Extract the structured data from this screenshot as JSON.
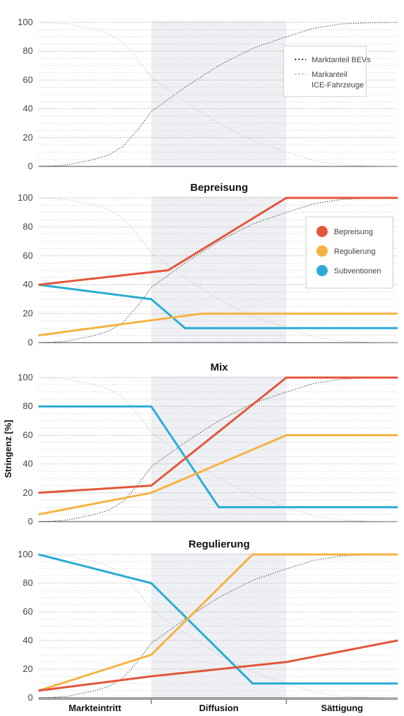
{
  "colors": {
    "bepreisung": "#e4553a",
    "regulierung": "#f5b342",
    "subventionen": "#29acd6",
    "bev": "#333333",
    "ice": "#bfbfbf",
    "phase_band": "#eef0f3",
    "grid": "#b0b0b0",
    "axis": "#444444"
  },
  "y_axis_label": "Stringenz [%]",
  "phases": [
    "Markteintritt",
    "Diffusion",
    "Sättigung"
  ],
  "chart_data": [
    {
      "type": "line",
      "title": "",
      "ylim": [
        0,
        100
      ],
      "yticks": [
        0,
        20,
        40,
        60,
        80,
        100
      ],
      "legend": {
        "position": "top-right",
        "entries": [
          "Marktanteil BEVs",
          "Markanteil ICE-Fahrzeuge"
        ]
      },
      "series": [
        {
          "name": "Marktanteil BEVs",
          "style": "dotted",
          "points": [
            [
              0,
              0
            ],
            [
              0.1,
              0.3
            ],
            [
              0.2,
              1
            ],
            [
              0.3,
              3
            ],
            [
              0.4,
              5
            ],
            [
              0.5,
              8
            ],
            [
              0.6,
              14
            ],
            [
              0.7,
              25
            ],
            [
              0.8,
              38
            ],
            [
              0.9,
              55
            ],
            [
              1.0,
              70
            ],
            [
              1.1,
              82
            ],
            [
              1.2,
              90
            ],
            [
              1.4,
              96
            ],
            [
              1.6,
              99
            ],
            [
              1.8,
              99.7
            ],
            [
              2.0,
              100
            ]
          ]
        },
        {
          "name": "Markanteil ICE-Fahrzeuge",
          "style": "dotted",
          "points": [
            [
              0,
              100
            ],
            [
              0.1,
              99.7
            ],
            [
              0.2,
              99
            ],
            [
              0.3,
              97
            ],
            [
              0.4,
              95
            ],
            [
              0.5,
              92
            ],
            [
              0.6,
              86
            ],
            [
              0.7,
              75
            ],
            [
              0.8,
              62
            ],
            [
              0.9,
              45
            ],
            [
              1.0,
              30
            ],
            [
              1.1,
              18
            ],
            [
              1.2,
              10
            ],
            [
              1.4,
              4
            ],
            [
              1.6,
              1
            ],
            [
              1.8,
              0.3
            ],
            [
              2.0,
              0
            ]
          ]
        }
      ]
    },
    {
      "type": "line",
      "title": "Bepreisung",
      "ylim": [
        0,
        100
      ],
      "yticks": [
        0,
        20,
        40,
        60,
        80,
        100
      ],
      "legend": {
        "position": "top-right",
        "entries": [
          "Bepreisung",
          "Regulierung",
          "Subventionen"
        ]
      },
      "series": [
        {
          "name": "Bepreisung",
          "points": [
            [
              0,
              40
            ],
            [
              0.85,
              50
            ],
            [
              1.2,
              100
            ],
            [
              2.0,
              100
            ]
          ]
        },
        {
          "name": "Regulierung",
          "points": [
            [
              0,
              5
            ],
            [
              0.85,
              17
            ],
            [
              0.95,
              20
            ],
            [
              2.0,
              20
            ]
          ]
        },
        {
          "name": "Subventionen",
          "points": [
            [
              0,
              40
            ],
            [
              0.8,
              30
            ],
            [
              0.9,
              10
            ],
            [
              2.0,
              10
            ]
          ]
        }
      ]
    },
    {
      "type": "line",
      "title": "Mix",
      "ylim": [
        0,
        100
      ],
      "yticks": [
        0,
        20,
        40,
        60,
        80,
        100
      ],
      "series": [
        {
          "name": "Bepreisung",
          "points": [
            [
              0,
              20
            ],
            [
              0.8,
              25
            ],
            [
              1.2,
              100
            ],
            [
              2.0,
              100
            ]
          ]
        },
        {
          "name": "Regulierung",
          "points": [
            [
              0,
              5
            ],
            [
              0.8,
              20
            ],
            [
              1.2,
              60
            ],
            [
              2.0,
              60
            ]
          ]
        },
        {
          "name": "Subventionen",
          "points": [
            [
              0,
              80
            ],
            [
              0.8,
              80
            ],
            [
              1.0,
              10
            ],
            [
              2.0,
              10
            ]
          ]
        }
      ]
    },
    {
      "type": "line",
      "title": "Regulierung",
      "ylim": [
        0,
        100
      ],
      "yticks": [
        0,
        20,
        40,
        60,
        80,
        100
      ],
      "series": [
        {
          "name": "Bepreisung",
          "points": [
            [
              0,
              5
            ],
            [
              0.8,
              15
            ],
            [
              1.2,
              25
            ],
            [
              2.0,
              40
            ]
          ]
        },
        {
          "name": "Regulierung",
          "points": [
            [
              0,
              5
            ],
            [
              0.8,
              30
            ],
            [
              1.1,
              100
            ],
            [
              2.0,
              100
            ]
          ]
        },
        {
          "name": "Subventionen",
          "points": [
            [
              0,
              100
            ],
            [
              0.8,
              80
            ],
            [
              1.1,
              10
            ],
            [
              2.0,
              10
            ]
          ]
        }
      ]
    }
  ]
}
